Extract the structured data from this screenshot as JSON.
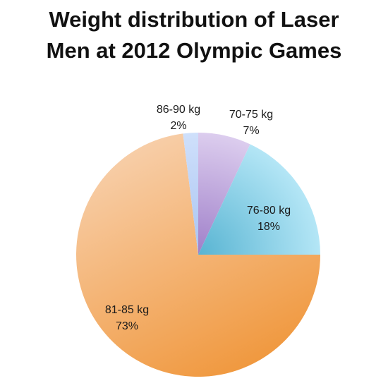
{
  "chart_data": {
    "type": "pie",
    "title_lines": [
      "Weight distribution of Laser",
      "Men at 2012 Olympic Games"
    ],
    "slices": [
      {
        "label": "70-75 kg",
        "percent_label": "7%",
        "value": 7,
        "color_light": "#dccdee",
        "color_dark": "#9f7fc9"
      },
      {
        "label": "76-80 kg",
        "percent_label": "18%",
        "value": 18,
        "color_light": "#b4e6f6",
        "color_dark": "#58b4d2"
      },
      {
        "label": "81-85 kg",
        "percent_label": "73%",
        "value": 73,
        "color_light": "#f8d2b0",
        "color_dark": "#f0983e"
      },
      {
        "label": "86-90 kg",
        "percent_label": "2%",
        "value": 2,
        "color_light": "#cfe0fb",
        "color_dark": "#a9c4f2"
      }
    ],
    "start_angle_deg": 0,
    "direction": "clockwise"
  }
}
